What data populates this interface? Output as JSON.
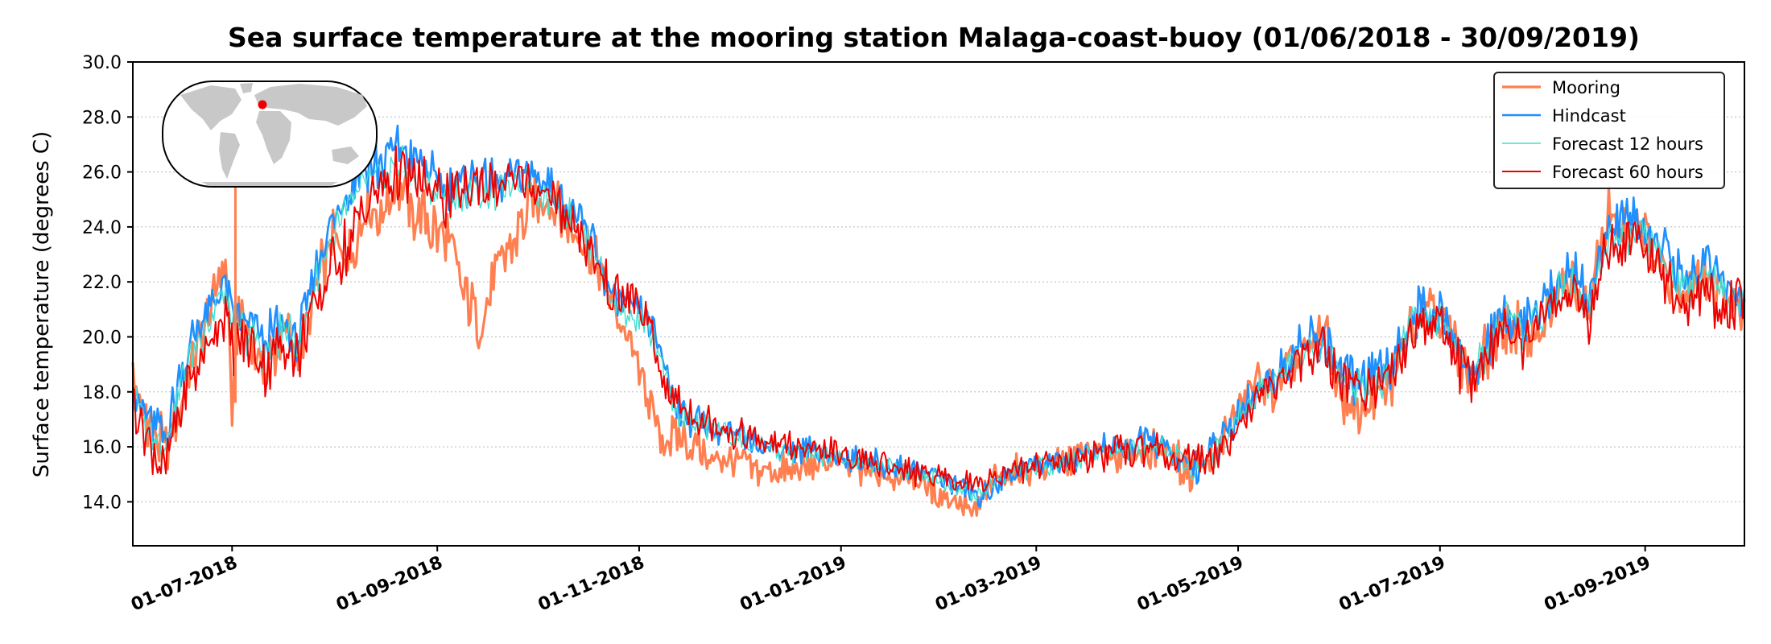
{
  "chart_data": {
    "type": "line",
    "title": "Sea surface temperature at the mooring station Malaga-coast-buoy (01/06/2018 - 30/09/2019)",
    "xlabel": "",
    "ylabel": "Surface temperature (degrees C)",
    "ylim": [
      12.4,
      30.0
    ],
    "y_ticks": [
      14.0,
      16.0,
      18.0,
      20.0,
      22.0,
      24.0,
      26.0,
      28.0,
      30.0
    ],
    "y_tick_labels": [
      "14.0",
      "16.0",
      "18.0",
      "20.0",
      "22.0",
      "24.0",
      "26.0",
      "28.0",
      "30.0"
    ],
    "x_range_days": [
      0,
      487
    ],
    "x_ticks_days": [
      30,
      92,
      153,
      214,
      273,
      334,
      395,
      457
    ],
    "x_tick_labels": [
      "01-07-2018",
      "01-09-2018",
      "01-11-2018",
      "01-01-2019",
      "01-03-2019",
      "01-05-2019",
      "01-07-2019",
      "01-09-2019"
    ],
    "grid": "horizontal dotted",
    "legend_position": "top-right",
    "inset": "world-map-with-station-marker",
    "series": [
      {
        "name": "Mooring",
        "color": "#FF7F50",
        "x": [
          0,
          5,
          10,
          15,
          20,
          25,
          28,
          30,
          32,
          36,
          40,
          45,
          50,
          55,
          60,
          65,
          70,
          75,
          80,
          85,
          90,
          95,
          100,
          105,
          110,
          115,
          120,
          125,
          130,
          135,
          140,
          145,
          150,
          155,
          160,
          165,
          170,
          175,
          180,
          190,
          200,
          210,
          220,
          230,
          240,
          250,
          255,
          260,
          265,
          270,
          280,
          290,
          300,
          310,
          315,
          320,
          325,
          330,
          335,
          340,
          345,
          350,
          355,
          360,
          365,
          370,
          375,
          380,
          385,
          390,
          395,
          400,
          405,
          410,
          415,
          420,
          425,
          430,
          435,
          440,
          445,
          450,
          455,
          460,
          465,
          470,
          475,
          480,
          487
        ],
        "values": [
          18.3,
          16.8,
          15.8,
          17.5,
          19.8,
          21.7,
          22.8,
          17.3,
          21.0,
          19.4,
          18.8,
          20.3,
          19.2,
          21.6,
          23.4,
          23.0,
          24.6,
          24.3,
          25.8,
          24.6,
          24.0,
          23.6,
          21.6,
          20.3,
          22.4,
          23.4,
          24.8,
          25.2,
          24.4,
          23.5,
          22.8,
          21.2,
          19.8,
          18.0,
          16.1,
          16.4,
          16.1,
          15.4,
          15.6,
          15.2,
          15.1,
          15.4,
          15.2,
          15.0,
          14.6,
          13.9,
          13.6,
          14.8,
          15.0,
          15.2,
          15.4,
          15.8,
          15.7,
          16.0,
          15.5,
          15.1,
          15.5,
          16.4,
          17.6,
          18.5,
          18.0,
          19.1,
          19.4,
          20.2,
          17.8,
          17.0,
          17.6,
          18.2,
          20.3,
          21.4,
          20.9,
          19.4,
          18.3,
          19.8,
          20.6,
          20.0,
          20.5,
          21.4,
          22.0,
          20.6,
          24.4,
          23.8,
          24.6,
          23.0,
          22.2,
          21.8,
          22.3,
          21.4,
          21.0
        ]
      },
      {
        "name": "Hindcast",
        "color": "#1E90FF",
        "x": [
          0,
          5,
          10,
          15,
          20,
          25,
          28,
          30,
          32,
          36,
          40,
          45,
          50,
          55,
          60,
          65,
          70,
          75,
          80,
          85,
          90,
          95,
          100,
          105,
          110,
          115,
          120,
          125,
          130,
          135,
          140,
          145,
          150,
          155,
          160,
          165,
          170,
          175,
          180,
          190,
          200,
          210,
          220,
          230,
          240,
          250,
          255,
          260,
          265,
          270,
          280,
          290,
          300,
          310,
          315,
          320,
          325,
          330,
          335,
          340,
          345,
          350,
          355,
          360,
          365,
          370,
          375,
          380,
          385,
          390,
          395,
          400,
          405,
          410,
          415,
          420,
          425,
          430,
          435,
          440,
          445,
          450,
          455,
          460,
          465,
          470,
          475,
          480,
          487
        ],
        "values": [
          18.0,
          16.9,
          16.4,
          18.8,
          20.5,
          21.4,
          22.0,
          21.0,
          20.6,
          20.4,
          19.7,
          20.6,
          19.9,
          22.3,
          24.2,
          25.3,
          26.3,
          26.2,
          27.0,
          26.4,
          25.8,
          25.4,
          25.6,
          25.8,
          25.6,
          25.8,
          25.9,
          25.6,
          25.0,
          24.2,
          23.2,
          21.2,
          21.1,
          20.8,
          19.2,
          17.2,
          17.0,
          16.7,
          16.5,
          16.1,
          15.9,
          15.7,
          15.5,
          15.3,
          15.1,
          14.6,
          14.2,
          14.6,
          15.0,
          15.3,
          15.5,
          15.8,
          16.0,
          16.2,
          15.5,
          15.2,
          15.6,
          16.2,
          17.4,
          18.2,
          18.5,
          19.4,
          19.8,
          20.0,
          18.8,
          18.4,
          18.5,
          18.8,
          20.5,
          21.0,
          20.8,
          19.6,
          18.5,
          20.0,
          21.0,
          20.4,
          21.0,
          21.6,
          22.5,
          21.4,
          23.8,
          24.0,
          24.3,
          23.6,
          22.6,
          22.0,
          22.8,
          22.0,
          21.3
        ]
      },
      {
        "name": "Forecast 12 hours",
        "color": "#40E0D0",
        "x": [
          0,
          5,
          10,
          15,
          20,
          25,
          28,
          30,
          32,
          36,
          40,
          45,
          50,
          55,
          60,
          65,
          70,
          75,
          80,
          85,
          90,
          95,
          100,
          105,
          110,
          115,
          120,
          125,
          130,
          135,
          140,
          145,
          150,
          155,
          160,
          165,
          170,
          175,
          180,
          190,
          200,
          210,
          220,
          230,
          240,
          250,
          255,
          260,
          265,
          270,
          280,
          290,
          300,
          310,
          315,
          320,
          325,
          330,
          335,
          340,
          345,
          350,
          355,
          360,
          365,
          370,
          375,
          380,
          385,
          390,
          395,
          400,
          405,
          410,
          415,
          420,
          425,
          430,
          435,
          440,
          445,
          450,
          455,
          460,
          465,
          470,
          475,
          480,
          487
        ],
        "values": [
          17.9,
          16.7,
          16.0,
          18.4,
          20.0,
          21.0,
          21.6,
          20.6,
          20.3,
          20.0,
          19.4,
          20.2,
          19.7,
          21.8,
          23.6,
          24.6,
          25.5,
          25.6,
          26.3,
          25.8,
          25.4,
          25.0,
          25.1,
          25.3,
          25.2,
          25.4,
          25.5,
          25.2,
          24.6,
          24.0,
          23.0,
          21.1,
          20.8,
          20.4,
          18.9,
          17.1,
          16.9,
          16.6,
          16.4,
          16.0,
          15.8,
          15.6,
          15.4,
          15.2,
          15.0,
          14.5,
          14.3,
          14.7,
          15.0,
          15.2,
          15.4,
          15.7,
          15.9,
          16.1,
          15.6,
          15.3,
          15.6,
          16.1,
          17.3,
          18.1,
          18.3,
          19.2,
          19.6,
          19.8,
          18.6,
          18.2,
          18.3,
          18.6,
          20.2,
          20.8,
          20.6,
          19.5,
          18.4,
          19.8,
          20.8,
          20.2,
          20.8,
          21.4,
          22.2,
          21.1,
          23.4,
          23.6,
          23.9,
          23.2,
          22.3,
          21.7,
          22.5,
          21.7,
          21.1
        ]
      },
      {
        "name": "Forecast 60 hours",
        "color": "#EE0000",
        "x": [
          0,
          5,
          10,
          15,
          20,
          25,
          28,
          30,
          32,
          36,
          40,
          45,
          50,
          55,
          60,
          65,
          70,
          75,
          80,
          85,
          90,
          95,
          100,
          105,
          110,
          115,
          120,
          125,
          130,
          135,
          140,
          145,
          150,
          155,
          160,
          165,
          170,
          175,
          180,
          190,
          200,
          210,
          220,
          230,
          240,
          250,
          255,
          260,
          265,
          270,
          280,
          290,
          300,
          310,
          315,
          320,
          325,
          330,
          335,
          340,
          345,
          350,
          355,
          360,
          365,
          370,
          375,
          380,
          385,
          390,
          395,
          400,
          405,
          410,
          415,
          420,
          425,
          430,
          435,
          440,
          445,
          450,
          455,
          460,
          465,
          470,
          475,
          480,
          487
        ],
        "values": [
          17.8,
          16.3,
          15.2,
          17.8,
          19.0,
          20.2,
          21.0,
          19.7,
          19.8,
          19.5,
          18.8,
          19.8,
          19.4,
          21.0,
          22.6,
          23.4,
          24.8,
          25.4,
          25.9,
          25.6,
          25.4,
          25.0,
          25.3,
          25.5,
          25.4,
          25.6,
          25.6,
          25.3,
          24.5,
          23.9,
          22.8,
          21.3,
          21.6,
          20.7,
          18.5,
          17.6,
          17.2,
          16.8,
          16.6,
          16.2,
          15.9,
          15.8,
          15.5,
          15.3,
          15.0,
          14.8,
          14.6,
          14.9,
          15.1,
          15.3,
          15.4,
          15.7,
          15.9,
          16.0,
          15.6,
          15.3,
          15.5,
          15.9,
          17.0,
          17.9,
          18.2,
          19.0,
          19.3,
          19.6,
          18.4,
          18.0,
          18.2,
          18.5,
          20.0,
          20.6,
          20.3,
          19.2,
          18.2,
          19.4,
          20.4,
          19.9,
          20.5,
          21.1,
          22.0,
          20.8,
          23.1,
          23.3,
          23.6,
          22.9,
          21.6,
          20.8,
          21.8,
          20.9,
          21.5
        ]
      }
    ]
  }
}
